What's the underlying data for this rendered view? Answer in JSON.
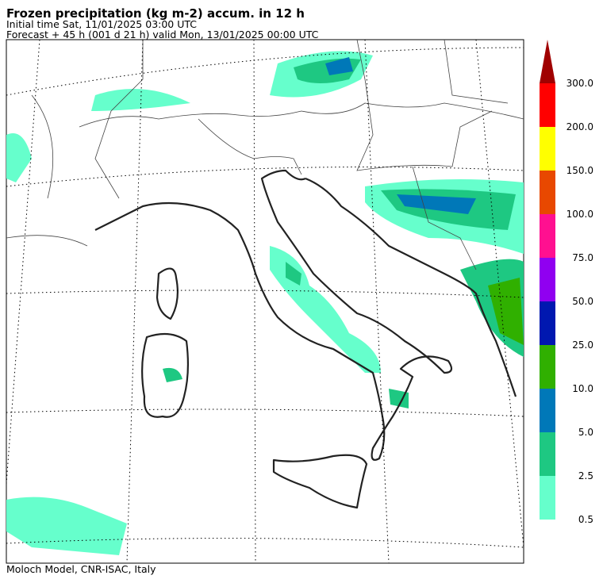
{
  "header": {
    "title": "Frozen precipitation (kg m-2) accum. in 12 h",
    "initial_time": "Initial time  Sat, 11/01/2025  03:00 UTC",
    "forecast": "Forecast  +  45 h  (001 d 21 h)  valid Mon, 13/01/2025 00:00 UTC"
  },
  "colorbar": {
    "levels": [
      "0.5",
      "2.5",
      "5.0",
      "10.0",
      "25.0",
      "50.0",
      "75.0",
      "100.0",
      "150.0",
      "200.0",
      "300.0"
    ],
    "colors": [
      "#66ffcc",
      "#1ec882",
      "#0078b8",
      "#30b000",
      "#0018b0",
      "#9000f0",
      "#ff1090",
      "#e84800",
      "#ffff00",
      "#ff0000"
    ],
    "extend_color": "#a00000"
  },
  "footer": "Moloch Model, CNR-ISAC, Italy"
}
